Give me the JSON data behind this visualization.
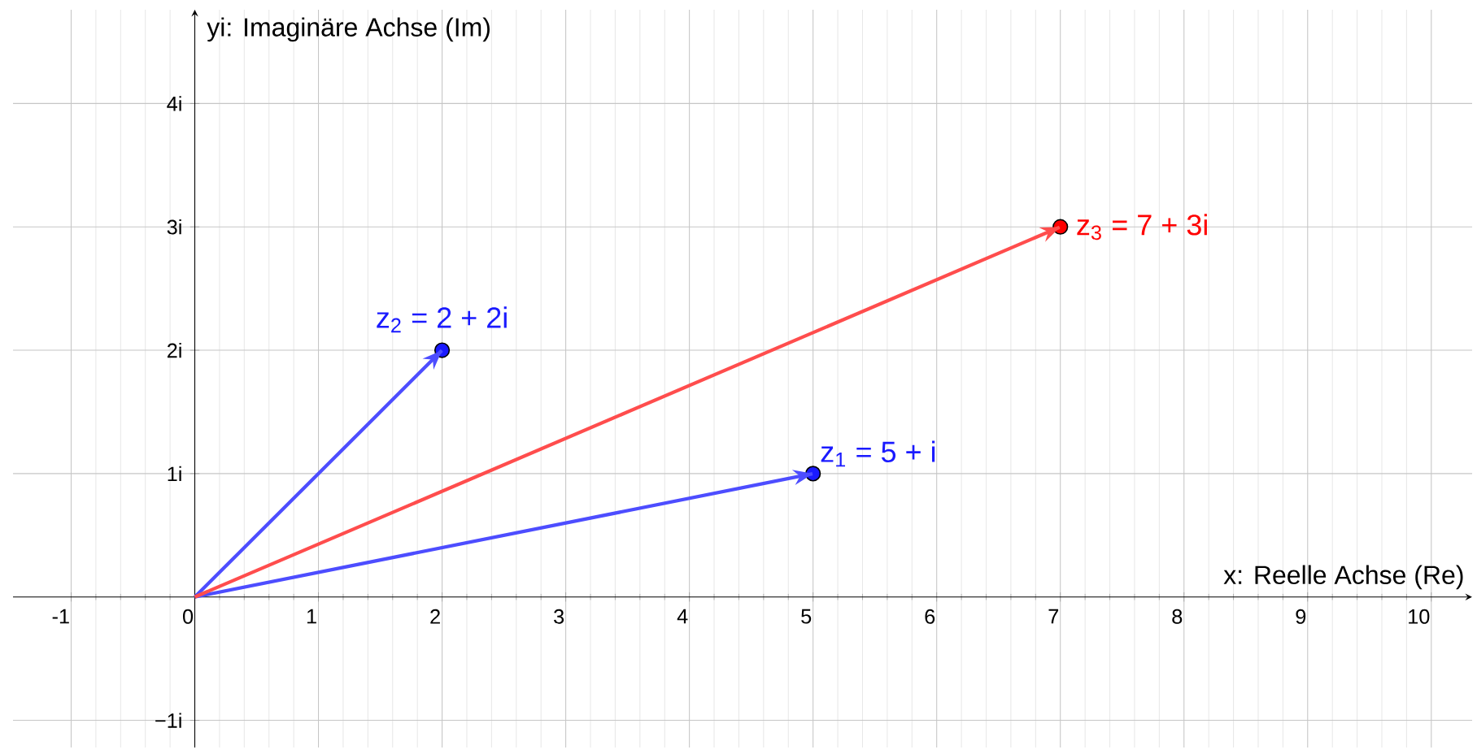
{
  "chart_data": {
    "type": "scatter",
    "xlabel": "x: Reelle Achse (Re)",
    "ylabel": "yi: Imaginäre Achse (Im)",
    "xlim": [
      -1.47,
      10.33
    ],
    "ylim": [
      -1.22,
      4.76
    ],
    "xticks": [
      -1,
      0,
      1,
      2,
      3,
      4,
      5,
      6,
      7,
      8,
      9,
      10
    ],
    "yticks": [
      {
        "value": -1,
        "label": "−1i"
      },
      {
        "value": 1,
        "label": "1i"
      },
      {
        "value": 2,
        "label": "2i"
      },
      {
        "value": 3,
        "label": "3i"
      },
      {
        "value": 4,
        "label": "4i"
      }
    ],
    "grid": true,
    "series": [
      {
        "type": "line",
        "color": "#4d4dff",
        "x": [
          0,
          5
        ],
        "values": [
          0,
          1
        ]
      },
      {
        "type": "line",
        "color": "#4d4dff",
        "x": [
          0,
          2
        ],
        "values": [
          0,
          2
        ]
      },
      {
        "type": "line",
        "color": "#ff4d4d",
        "x": [
          0,
          7
        ],
        "values": [
          0,
          3
        ]
      },
      {
        "name": "z$_{1}$ = 5 + i",
        "color": "#1a1aff",
        "marker": "circle",
        "x": [
          5
        ],
        "values": [
          1
        ]
      },
      {
        "name": "z$_{2}$ = 2 + 2i",
        "color": "#1a1aff",
        "marker": "circle",
        "x": [
          2
        ],
        "values": [
          2
        ]
      },
      {
        "name": "z$_{3}$ = 7 + 3i",
        "color": "#ff0000",
        "marker": "circle",
        "x": [
          7
        ],
        "values": [
          3
        ]
      }
    ]
  }
}
